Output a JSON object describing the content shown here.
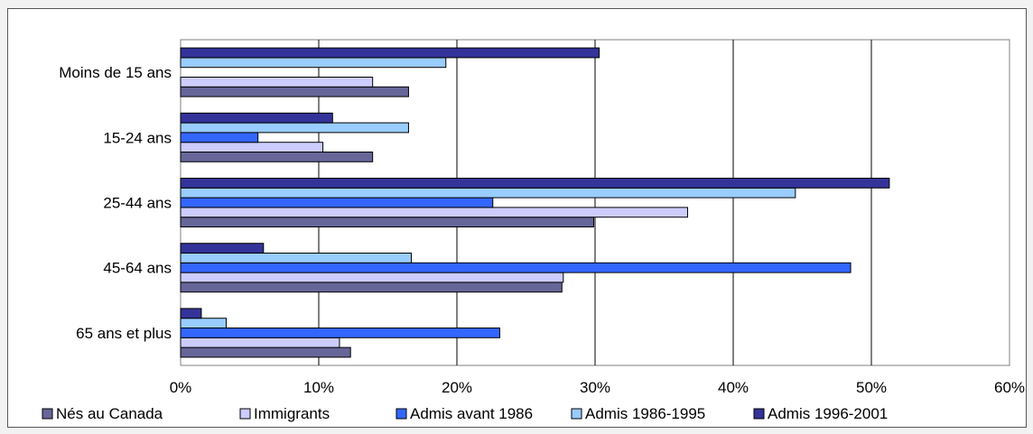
{
  "chart_data": {
    "type": "bar",
    "orientation": "horizontal",
    "title": "",
    "xlabel": "",
    "ylabel": "",
    "categories": [
      "65 ans et plus",
      "45-64 ans",
      "25-44 ans",
      "15-24 ans",
      "Moins de 15 ans"
    ],
    "x_ticks": [
      "0%",
      "10%",
      "20%",
      "30%",
      "40%",
      "50%",
      "60%"
    ],
    "xlim": [
      0,
      60
    ],
    "grid": "vertical",
    "legend_position": "bottom",
    "series": [
      {
        "name": "Nés au Canada",
        "color": "#666699",
        "values": [
          12.3,
          27.6,
          29.9,
          13.9,
          16.5
        ]
      },
      {
        "name": "Immigrants",
        "color": "#ccccff",
        "values": [
          11.5,
          27.7,
          36.7,
          10.3,
          13.9
        ]
      },
      {
        "name": "Admis avant 1986",
        "color": "#3366ff",
        "values": [
          23.1,
          48.5,
          22.6,
          5.6,
          0
        ]
      },
      {
        "name": "Admis 1986-1995",
        "color": "#99ccff",
        "values": [
          3.3,
          16.7,
          44.5,
          16.5,
          19.2
        ]
      },
      {
        "name": "Admis 1996-2001",
        "color": "#333399",
        "values": [
          1.5,
          6.0,
          51.3,
          11.0,
          30.3
        ]
      }
    ]
  }
}
